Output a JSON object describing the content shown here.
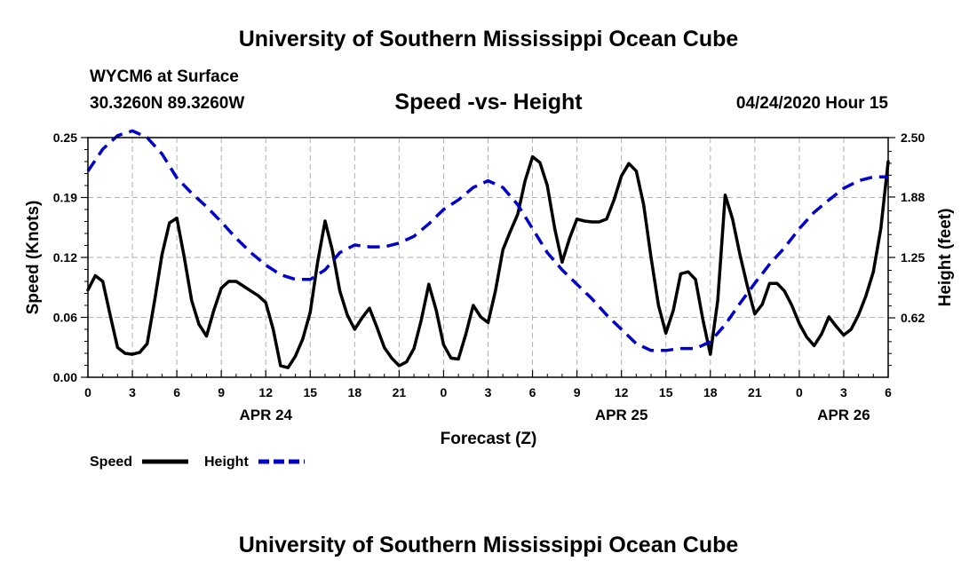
{
  "header": {
    "title": "University of Southern Mississippi Ocean Cube",
    "station": "WYCM6 at Surface",
    "coords": "30.3260N 89.3260W",
    "subtitle": "Speed -vs- Height",
    "datestamp": "04/24/2020 Hour 15",
    "footer_title": "University of Southern Mississippi Ocean Cube"
  },
  "chart_data": {
    "type": "line",
    "title": "Speed -vs- Height",
    "xlabel": "Forecast (Z)",
    "ylabel_left": "Speed (Knots)",
    "ylabel_right": "Height (feet)",
    "xlim": [
      0,
      54
    ],
    "ylim_left": [
      0,
      0.25
    ],
    "ylim_right": [
      0,
      2.5
    ],
    "grid": true,
    "x_tick_labels": [
      "0",
      "3",
      "6",
      "9",
      "12",
      "15",
      "18",
      "21",
      "0",
      "3",
      "6",
      "9",
      "12",
      "15",
      "18",
      "21",
      "0",
      "3",
      "6"
    ],
    "date_labels": [
      {
        "label": "APR 24",
        "x": 12
      },
      {
        "label": "APR 25",
        "x": 36
      },
      {
        "label": "APR 26",
        "x": 51
      }
    ],
    "y_left_ticks": [
      "0.00",
      "0.06",
      "0.12",
      "0.19",
      "0.25"
    ],
    "y_right_ticks": [
      "0.62",
      "1.25",
      "1.88",
      "2.50"
    ],
    "y_right_tick_values": [
      0.62,
      1.25,
      1.88,
      2.5
    ],
    "legend": [
      {
        "name": "Speed",
        "color": "#000000",
        "style": "solid"
      },
      {
        "name": "Height",
        "color": "#0000cc",
        "style": "dashed"
      }
    ],
    "series": [
      {
        "name": "Speed",
        "axis": "left",
        "color": "#000000",
        "x": [
          0,
          0.5,
          1,
          1.5,
          2,
          2.5,
          3,
          3.5,
          4,
          4.5,
          5,
          5.5,
          6,
          6.5,
          7,
          7.5,
          8,
          8.5,
          9,
          9.5,
          10,
          10.5,
          11,
          11.5,
          12,
          12.5,
          13,
          13.5,
          14,
          14.5,
          15,
          15.5,
          16,
          16.5,
          17,
          17.5,
          18,
          18.5,
          19,
          19.5,
          20,
          20.5,
          21,
          21.5,
          22,
          22.5,
          23,
          23.5,
          24,
          24.5,
          25,
          25.5,
          26,
          26.5,
          27,
          27.5,
          28,
          28.5,
          29,
          29.5,
          30,
          30.5,
          31,
          31.5,
          32,
          32.5,
          33,
          33.5,
          34,
          34.5,
          35,
          35.5,
          36,
          36.5,
          37,
          37.5,
          38,
          38.5,
          39,
          39.5,
          40,
          40.5,
          41,
          41.5,
          42,
          42.5,
          43,
          43.5,
          44,
          44.5,
          45,
          45.5,
          46,
          46.5,
          47,
          47.5,
          48,
          48.5,
          49,
          49.5,
          50,
          50.5,
          51,
          51.5,
          52,
          52.5,
          53,
          53.5,
          54
        ],
        "values": [
          0.091,
          0.106,
          0.1,
          0.065,
          0.031,
          0.025,
          0.024,
          0.026,
          0.035,
          0.08,
          0.128,
          0.161,
          0.166,
          0.125,
          0.08,
          0.055,
          0.043,
          0.07,
          0.093,
          0.1,
          0.1,
          0.095,
          0.09,
          0.085,
          0.078,
          0.05,
          0.012,
          0.01,
          0.022,
          0.04,
          0.068,
          0.12,
          0.163,
          0.132,
          0.09,
          0.065,
          0.05,
          0.062,
          0.072,
          0.052,
          0.031,
          0.02,
          0.012,
          0.016,
          0.03,
          0.06,
          0.097,
          0.07,
          0.034,
          0.02,
          0.019,
          0.045,
          0.075,
          0.063,
          0.057,
          0.09,
          0.133,
          0.152,
          0.17,
          0.205,
          0.23,
          0.224,
          0.2,
          0.155,
          0.12,
          0.145,
          0.165,
          0.163,
          0.162,
          0.162,
          0.165,
          0.185,
          0.21,
          0.223,
          0.215,
          0.18,
          0.125,
          0.075,
          0.046,
          0.07,
          0.108,
          0.11,
          0.102,
          0.06,
          0.024,
          0.08,
          0.19,
          0.165,
          0.128,
          0.095,
          0.066,
          0.076,
          0.098,
          0.098,
          0.09,
          0.075,
          0.056,
          0.042,
          0.033,
          0.045,
          0.063,
          0.053,
          0.044,
          0.05,
          0.065,
          0.085,
          0.11,
          0.155,
          0.225
        ]
      },
      {
        "name": "Height",
        "axis": "right",
        "color": "#0000cc",
        "x": [
          0,
          1,
          2,
          3,
          4,
          5,
          6,
          7,
          8,
          9,
          10,
          11,
          12,
          13,
          14,
          15,
          16,
          17,
          18,
          19,
          20,
          21,
          22,
          23,
          24,
          25,
          26,
          27,
          28,
          29,
          30,
          31,
          32,
          33,
          34,
          35,
          36,
          37,
          38,
          39,
          40,
          41,
          42,
          43,
          44,
          45,
          46,
          47,
          48,
          49,
          50,
          51,
          52,
          53,
          54
        ],
        "values": [
          2.15,
          2.38,
          2.52,
          2.57,
          2.5,
          2.33,
          2.08,
          1.92,
          1.78,
          1.62,
          1.45,
          1.3,
          1.17,
          1.07,
          1.02,
          1.02,
          1.12,
          1.3,
          1.38,
          1.36,
          1.36,
          1.4,
          1.47,
          1.6,
          1.75,
          1.85,
          1.98,
          2.05,
          1.98,
          1.8,
          1.55,
          1.3,
          1.12,
          0.97,
          0.82,
          0.65,
          0.5,
          0.35,
          0.28,
          0.28,
          0.3,
          0.3,
          0.37,
          0.55,
          0.77,
          0.98,
          1.18,
          1.35,
          1.55,
          1.72,
          1.85,
          1.97,
          2.05,
          2.09,
          2.09
        ]
      }
    ]
  }
}
